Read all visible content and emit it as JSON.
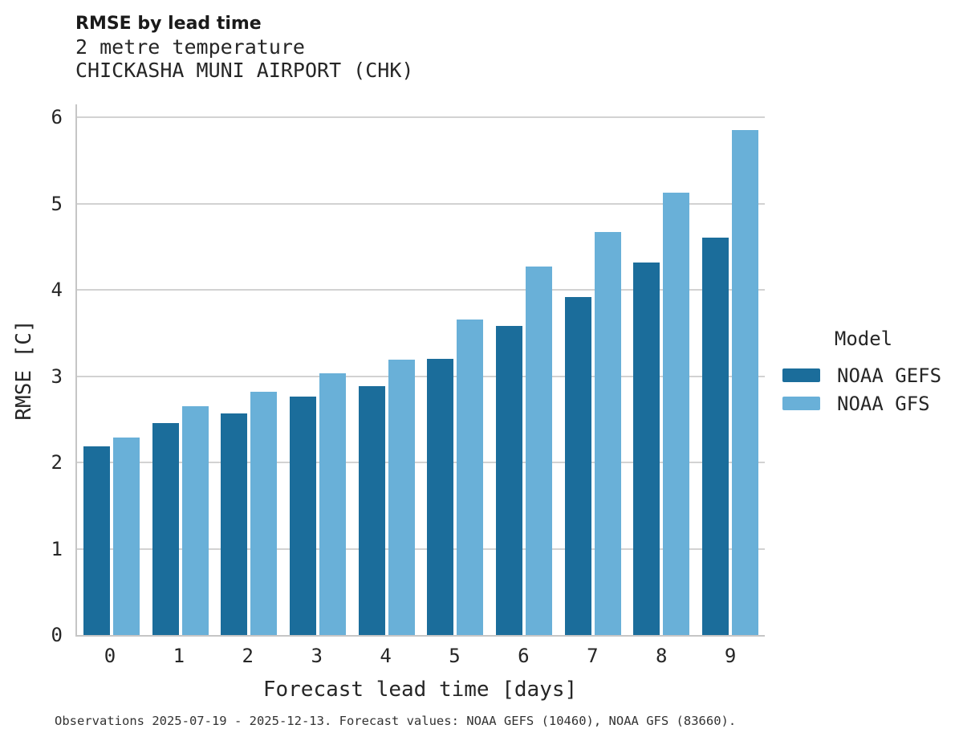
{
  "title": "RMSE by lead time",
  "subtitle_line1": "2 metre temperature",
  "subtitle_line2": "CHICKASHA MUNI AIRPORT (CHK)",
  "caption": "Observations 2025-07-19 - 2025-12-13. Forecast values: NOAA GEFS (10460), NOAA GFS (83660).",
  "legend": {
    "title": "Model",
    "items": [
      {
        "label": "NOAA GEFS",
        "color": "#1b6d9b"
      },
      {
        "label": "NOAA GFS",
        "color": "#69b0d8"
      }
    ]
  },
  "colors": {
    "gefs_bar": "#1b6d9b",
    "gfs_bar": "#69b0d8",
    "gridline": "#d2d2d2",
    "spine": "#c6c6c6",
    "text": "#262626"
  },
  "chart_data": {
    "type": "bar",
    "title": "RMSE by lead time",
    "subtitle": [
      "2 metre temperature",
      "CHICKASHA MUNI AIRPORT (CHK)"
    ],
    "categories": [
      "0",
      "1",
      "2",
      "3",
      "4",
      "5",
      "6",
      "7",
      "8",
      "9"
    ],
    "series": [
      {
        "name": "NOAA GEFS",
        "color": "#1b6d9b",
        "values": [
          2.19,
          2.46,
          2.57,
          2.76,
          2.88,
          3.2,
          3.58,
          3.92,
          4.32,
          4.61
        ]
      },
      {
        "name": "NOAA GFS",
        "color": "#69b0d8",
        "values": [
          2.29,
          2.65,
          2.82,
          3.03,
          3.19,
          3.66,
          4.27,
          4.67,
          5.13,
          5.85
        ]
      }
    ],
    "xlabel": "Forecast lead time [days]",
    "ylabel": "RMSE [C]",
    "ylim": [
      0,
      6.15
    ],
    "yticks": [
      0,
      1,
      2,
      3,
      4,
      5,
      6
    ],
    "grid": true,
    "legend_title": "Model",
    "legend_position": "center-right"
  }
}
